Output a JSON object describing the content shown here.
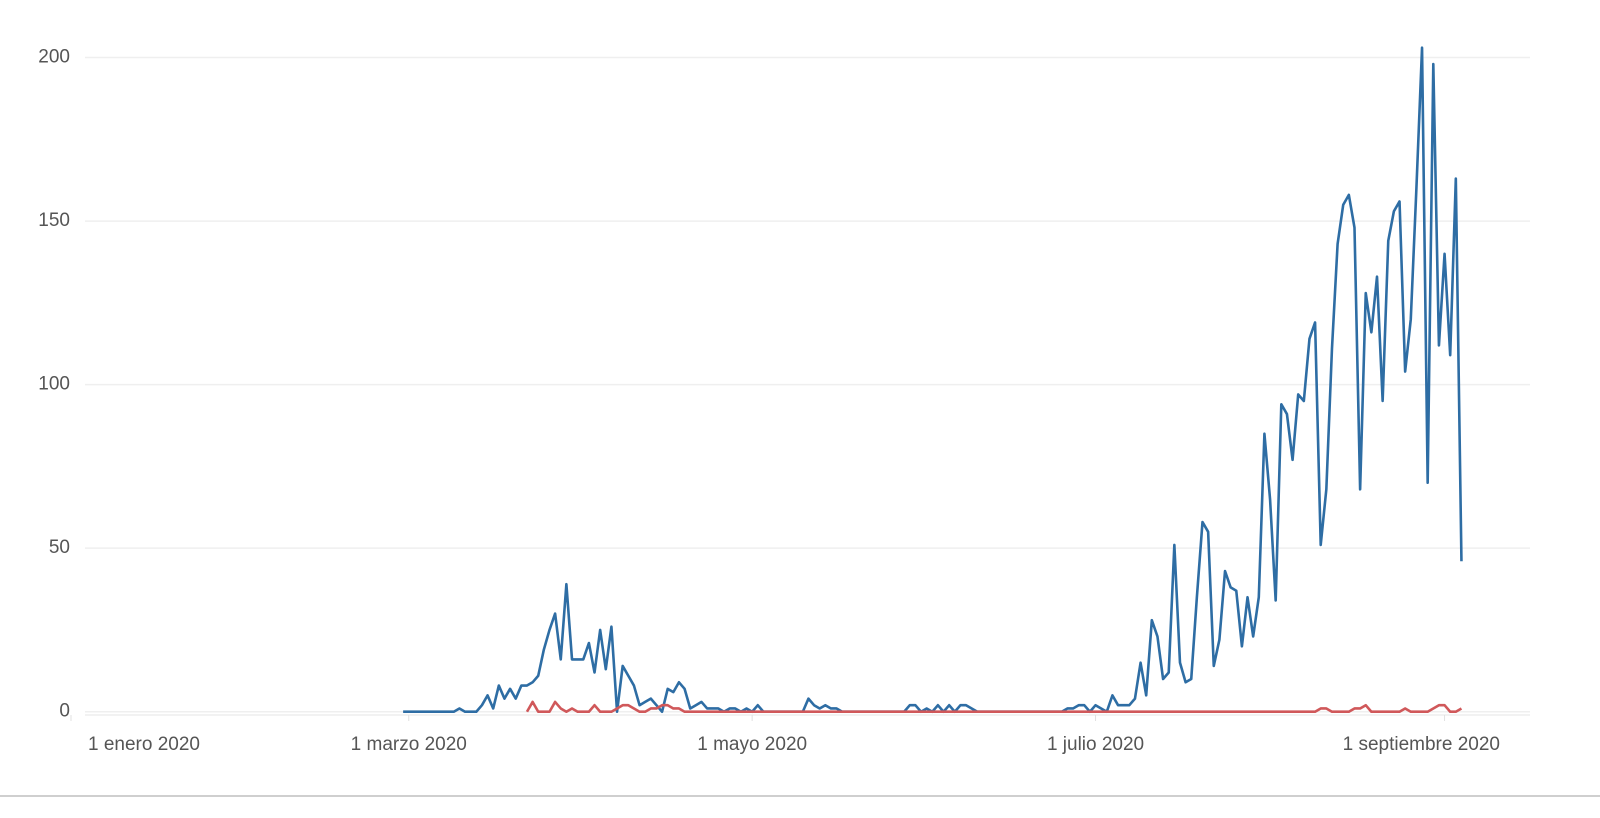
{
  "chart_data": {
    "type": "line",
    "x": [
      "2020-02-29",
      "2020-03-01",
      "2020-03-02",
      "2020-03-03",
      "2020-03-04",
      "2020-03-05",
      "2020-03-06",
      "2020-03-07",
      "2020-03-08",
      "2020-03-09",
      "2020-03-10",
      "2020-03-11",
      "2020-03-12",
      "2020-03-13",
      "2020-03-14",
      "2020-03-15",
      "2020-03-16",
      "2020-03-17",
      "2020-03-18",
      "2020-03-19",
      "2020-03-20",
      "2020-03-21",
      "2020-03-22",
      "2020-03-23",
      "2020-03-24",
      "2020-03-25",
      "2020-03-26",
      "2020-03-27",
      "2020-03-28",
      "2020-03-29",
      "2020-03-30",
      "2020-03-31",
      "2020-04-01",
      "2020-04-02",
      "2020-04-03",
      "2020-04-04",
      "2020-04-05",
      "2020-04-06",
      "2020-04-07",
      "2020-04-08",
      "2020-04-09",
      "2020-04-10",
      "2020-04-11",
      "2020-04-12",
      "2020-04-13",
      "2020-04-14",
      "2020-04-15",
      "2020-04-16",
      "2020-04-17",
      "2020-04-18",
      "2020-04-19",
      "2020-04-20",
      "2020-04-21",
      "2020-04-22",
      "2020-04-23",
      "2020-04-24",
      "2020-04-25",
      "2020-04-26",
      "2020-04-27",
      "2020-04-28",
      "2020-04-29",
      "2020-04-30",
      "2020-05-01",
      "2020-05-02",
      "2020-05-03",
      "2020-05-04",
      "2020-05-05",
      "2020-05-06",
      "2020-05-07",
      "2020-05-08",
      "2020-05-09",
      "2020-05-10",
      "2020-05-11",
      "2020-05-12",
      "2020-05-13",
      "2020-05-14",
      "2020-05-15",
      "2020-05-16",
      "2020-05-17",
      "2020-05-18",
      "2020-05-19",
      "2020-05-20",
      "2020-05-21",
      "2020-05-22",
      "2020-05-23",
      "2020-05-24",
      "2020-05-25",
      "2020-05-26",
      "2020-05-27",
      "2020-05-28",
      "2020-05-29",
      "2020-05-30",
      "2020-05-31",
      "2020-06-01",
      "2020-06-02",
      "2020-06-03",
      "2020-06-04",
      "2020-06-05",
      "2020-06-06",
      "2020-06-07",
      "2020-06-08",
      "2020-06-09",
      "2020-06-10",
      "2020-06-11",
      "2020-06-12",
      "2020-06-13",
      "2020-06-14",
      "2020-06-15",
      "2020-06-16",
      "2020-06-17",
      "2020-06-18",
      "2020-06-19",
      "2020-06-20",
      "2020-06-21",
      "2020-06-22",
      "2020-06-23",
      "2020-06-24",
      "2020-06-25",
      "2020-06-26",
      "2020-06-27",
      "2020-06-28",
      "2020-06-29",
      "2020-06-30",
      "2020-07-01",
      "2020-07-02",
      "2020-07-03",
      "2020-07-04",
      "2020-07-05",
      "2020-07-06",
      "2020-07-07",
      "2020-07-08",
      "2020-07-09",
      "2020-07-10",
      "2020-07-11",
      "2020-07-12",
      "2020-07-13",
      "2020-07-14",
      "2020-07-15",
      "2020-07-16",
      "2020-07-17",
      "2020-07-18",
      "2020-07-19",
      "2020-07-20",
      "2020-07-21",
      "2020-07-22",
      "2020-07-23",
      "2020-07-24",
      "2020-07-25",
      "2020-07-26",
      "2020-07-27",
      "2020-07-28",
      "2020-07-29",
      "2020-07-30",
      "2020-07-31",
      "2020-08-01",
      "2020-08-02",
      "2020-08-03",
      "2020-08-04",
      "2020-08-05",
      "2020-08-06",
      "2020-08-07",
      "2020-08-08",
      "2020-08-09",
      "2020-08-10",
      "2020-08-11",
      "2020-08-12",
      "2020-08-13",
      "2020-08-14",
      "2020-08-15",
      "2020-08-16",
      "2020-08-17",
      "2020-08-18",
      "2020-08-19",
      "2020-08-20",
      "2020-08-21",
      "2020-08-22",
      "2020-08-23",
      "2020-08-24",
      "2020-08-25",
      "2020-08-26",
      "2020-08-27",
      "2020-08-28",
      "2020-08-29",
      "2020-08-30",
      "2020-08-31",
      "2020-09-01",
      "2020-09-02",
      "2020-09-03",
      "2020-09-04"
    ],
    "series": [
      {
        "color": "#2e6da4",
        "values": [
          0,
          0,
          0,
          0,
          0,
          0,
          0,
          0,
          0,
          0,
          1,
          0,
          0,
          0,
          2,
          5,
          1,
          8,
          4,
          7,
          4,
          8,
          8,
          9,
          11,
          19,
          25,
          30,
          16,
          39,
          16,
          16,
          16,
          21,
          12,
          25,
          13,
          26,
          0,
          14,
          11,
          8,
          2,
          3,
          4,
          2,
          0,
          7,
          6,
          9,
          7,
          1,
          2,
          3,
          1,
          1,
          1,
          0,
          1,
          1,
          0,
          1,
          0,
          2,
          0,
          0,
          0,
          0,
          0,
          0,
          0,
          0,
          4,
          2,
          1,
          2,
          1,
          1,
          0,
          0,
          0,
          0,
          0,
          0,
          0,
          0,
          0,
          0,
          0,
          0,
          2,
          2,
          0,
          1,
          0,
          2,
          0,
          2,
          0,
          2,
          2,
          1,
          0,
          0,
          0,
          0,
          0,
          0,
          0,
          0,
          0,
          0,
          0,
          0,
          0,
          0,
          0,
          0,
          1,
          1,
          2,
          2,
          0,
          2,
          1,
          0,
          5,
          2,
          2,
          2,
          4,
          15,
          5,
          28,
          23,
          10,
          12,
          51,
          15,
          9,
          10,
          35,
          58,
          55,
          14,
          22,
          43,
          38,
          37,
          20,
          35,
          23,
          35,
          85,
          65,
          34,
          94,
          91,
          77,
          97,
          95,
          114,
          119,
          51,
          68,
          111,
          143,
          155,
          158,
          148,
          68,
          128,
          116,
          133,
          95,
          144,
          153,
          156,
          104,
          120,
          160,
          203,
          70,
          198,
          112,
          140,
          109,
          163,
          46
        ]
      },
      {
        "color": "#d0585a",
        "values": [
          null,
          null,
          null,
          null,
          null,
          null,
          null,
          null,
          null,
          null,
          null,
          null,
          null,
          null,
          null,
          null,
          null,
          null,
          null,
          null,
          null,
          null,
          0,
          3,
          0,
          0,
          0,
          3,
          1,
          0,
          1,
          0,
          0,
          0,
          2,
          0,
          0,
          0,
          1,
          2,
          2,
          1,
          0,
          0,
          1,
          1,
          2,
          2,
          1,
          1,
          0,
          0,
          0,
          0,
          0,
          0,
          0,
          0,
          0,
          0,
          0,
          0,
          0,
          0,
          0,
          0,
          0,
          0,
          0,
          0,
          0,
          0,
          0,
          0,
          0,
          0,
          0,
          0,
          0,
          0,
          0,
          0,
          0,
          0,
          0,
          0,
          0,
          0,
          0,
          0,
          0,
          0,
          0,
          0,
          0,
          0,
          0,
          0,
          0,
          0,
          0,
          0,
          0,
          0,
          0,
          0,
          0,
          0,
          0,
          0,
          0,
          0,
          0,
          0,
          0,
          0,
          0,
          0,
          0,
          0,
          0,
          0,
          0,
          0,
          0,
          0,
          0,
          0,
          0,
          0,
          0,
          0,
          0,
          0,
          0,
          0,
          0,
          0,
          0,
          0,
          0,
          0,
          0,
          0,
          0,
          0,
          0,
          0,
          0,
          0,
          0,
          0,
          0,
          0,
          0,
          0,
          0,
          0,
          0,
          0,
          0,
          0,
          0,
          1,
          1,
          0,
          0,
          0,
          0,
          1,
          1,
          2,
          0,
          0,
          0,
          0,
          0,
          0,
          1,
          0,
          0,
          0,
          0,
          1,
          2,
          2,
          0,
          0,
          1
        ]
      }
    ],
    "xlim": [
      "2020-01-01",
      "2020-09-16"
    ],
    "xticks": [
      {
        "value": "2020-01-01",
        "label": "1 enero 2020"
      },
      {
        "value": "2020-03-01",
        "label": "1 marzo 2020"
      },
      {
        "value": "2020-05-01",
        "label": "1 mayo 2020"
      },
      {
        "value": "2020-07-01",
        "label": "1 julio 2020"
      },
      {
        "value": "2020-09-01",
        "label": "1 septiembre 2020"
      }
    ],
    "ylim": [
      -1,
      213
    ],
    "yticks": [
      0,
      50,
      100,
      150,
      200
    ],
    "grid": true
  }
}
